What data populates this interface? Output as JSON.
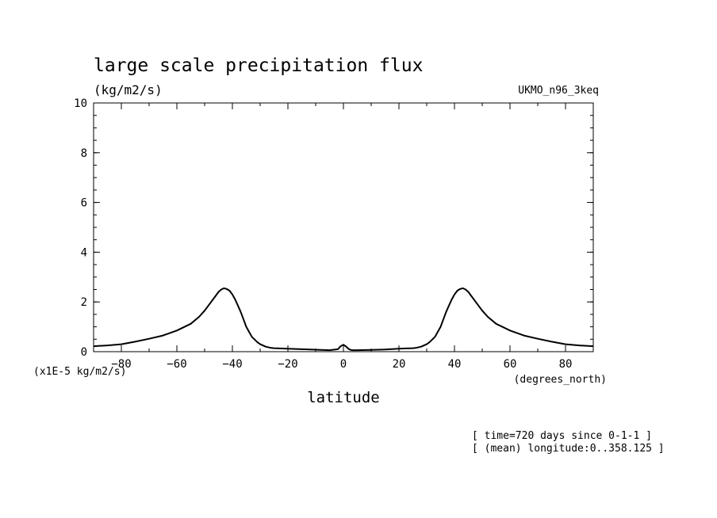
{
  "chart_data": {
    "type": "line",
    "title": "large scale precipitation flux",
    "units": "(kg/m2/s)",
    "dataset": "UKMO_n96_3keq",
    "xlabel": "latitude",
    "x_units": "(degrees_north)",
    "y_scale_note": "(x1E-5 kg/m2/s)",
    "xlim": [
      -90,
      90
    ],
    "ylim": [
      0,
      10
    ],
    "x_ticks": [
      -80,
      -60,
      -40,
      -20,
      0,
      20,
      40,
      60,
      80
    ],
    "x_tick_labels": [
      "-80",
      "-60",
      "-40",
      "-20",
      "0",
      "20",
      "40",
      "60",
      "80"
    ],
    "y_ticks": [
      0,
      2,
      4,
      6,
      8,
      10
    ],
    "y_tick_labels": [
      "0",
      "2",
      "4",
      "6",
      "8",
      "10"
    ],
    "notes": [
      "[ time=720 days since 0-1-1 ]",
      "[ (mean) longitude:0..358.125 ]"
    ],
    "series": [
      {
        "name": "large scale precipitation flux",
        "x": [
          -90,
          -85,
          -80,
          -75,
          -70,
          -65,
          -60,
          -55,
          -52,
          -50,
          -48,
          -46,
          -45,
          -44,
          -43,
          -42,
          -41,
          -40,
          -39,
          -38,
          -37,
          -36,
          -35,
          -33,
          -31,
          -30,
          -28,
          -26,
          -25,
          -20,
          -15,
          -10,
          -5,
          -2,
          -1,
          0,
          1,
          2,
          3,
          5,
          10,
          15,
          20,
          25,
          26,
          28,
          30,
          31,
          33,
          35,
          36,
          37,
          38,
          39,
          40,
          41,
          42,
          43,
          44,
          45,
          46,
          48,
          50,
          52,
          55,
          60,
          65,
          70,
          75,
          80,
          85,
          90
        ],
        "values": [
          0.22,
          0.25,
          0.3,
          0.4,
          0.52,
          0.65,
          0.85,
          1.12,
          1.4,
          1.65,
          1.95,
          2.25,
          2.4,
          2.5,
          2.55,
          2.52,
          2.45,
          2.3,
          2.1,
          1.85,
          1.6,
          1.3,
          1.0,
          0.6,
          0.38,
          0.3,
          0.2,
          0.15,
          0.14,
          0.12,
          0.1,
          0.08,
          0.06,
          0.1,
          0.22,
          0.28,
          0.2,
          0.1,
          0.06,
          0.06,
          0.07,
          0.09,
          0.12,
          0.14,
          0.15,
          0.2,
          0.3,
          0.38,
          0.6,
          1.0,
          1.3,
          1.6,
          1.85,
          2.1,
          2.3,
          2.45,
          2.52,
          2.55,
          2.5,
          2.4,
          2.25,
          1.95,
          1.65,
          1.4,
          1.12,
          0.85,
          0.65,
          0.52,
          0.4,
          0.3,
          0.25,
          0.22
        ]
      }
    ]
  }
}
